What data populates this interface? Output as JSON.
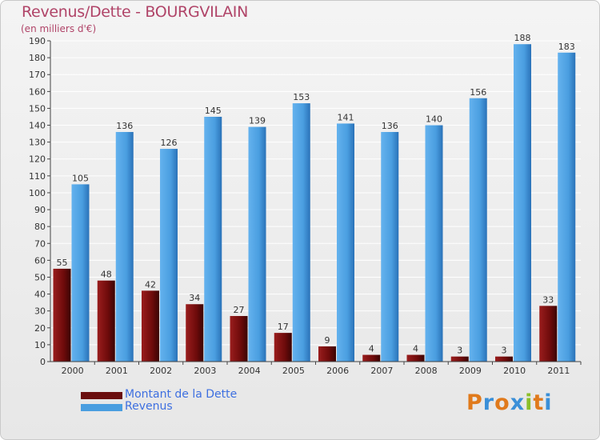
{
  "chart_data": {
    "type": "bar",
    "title": "Revenus/Dette - BOURGVILAIN",
    "subtitle": "(en milliers d'€)",
    "xlabel": "",
    "ylabel": "",
    "categories": [
      "2000",
      "2001",
      "2002",
      "2003",
      "2004",
      "2005",
      "2006",
      "2007",
      "2008",
      "2009",
      "2010",
      "2011"
    ],
    "ylim": [
      0,
      190
    ],
    "ytick_step": 10,
    "grid": true,
    "series": [
      {
        "name": "Montant de la Dette",
        "color": "#7a1010",
        "values": [
          55,
          48,
          42,
          34,
          27,
          17,
          9,
          4,
          4,
          3,
          3,
          33
        ]
      },
      {
        "name": "Revenus",
        "color": "#4a9ee0",
        "values": [
          105,
          136,
          126,
          145,
          139,
          153,
          141,
          136,
          140,
          156,
          188,
          183
        ]
      }
    ],
    "legend_position": "bottom-left"
  },
  "legend": [
    {
      "label": "Montant de la Dette",
      "color": "#6a0d0d"
    },
    {
      "label": "Revenus",
      "color": "#4a9ee0"
    }
  ],
  "logo": {
    "text": "Proxiti",
    "colors": [
      "#e07a1c",
      "#3a8fd8",
      "#e07a1c",
      "#3a8fd8",
      "#8bbf2a",
      "#e07a1c",
      "#3a8fd8"
    ]
  }
}
